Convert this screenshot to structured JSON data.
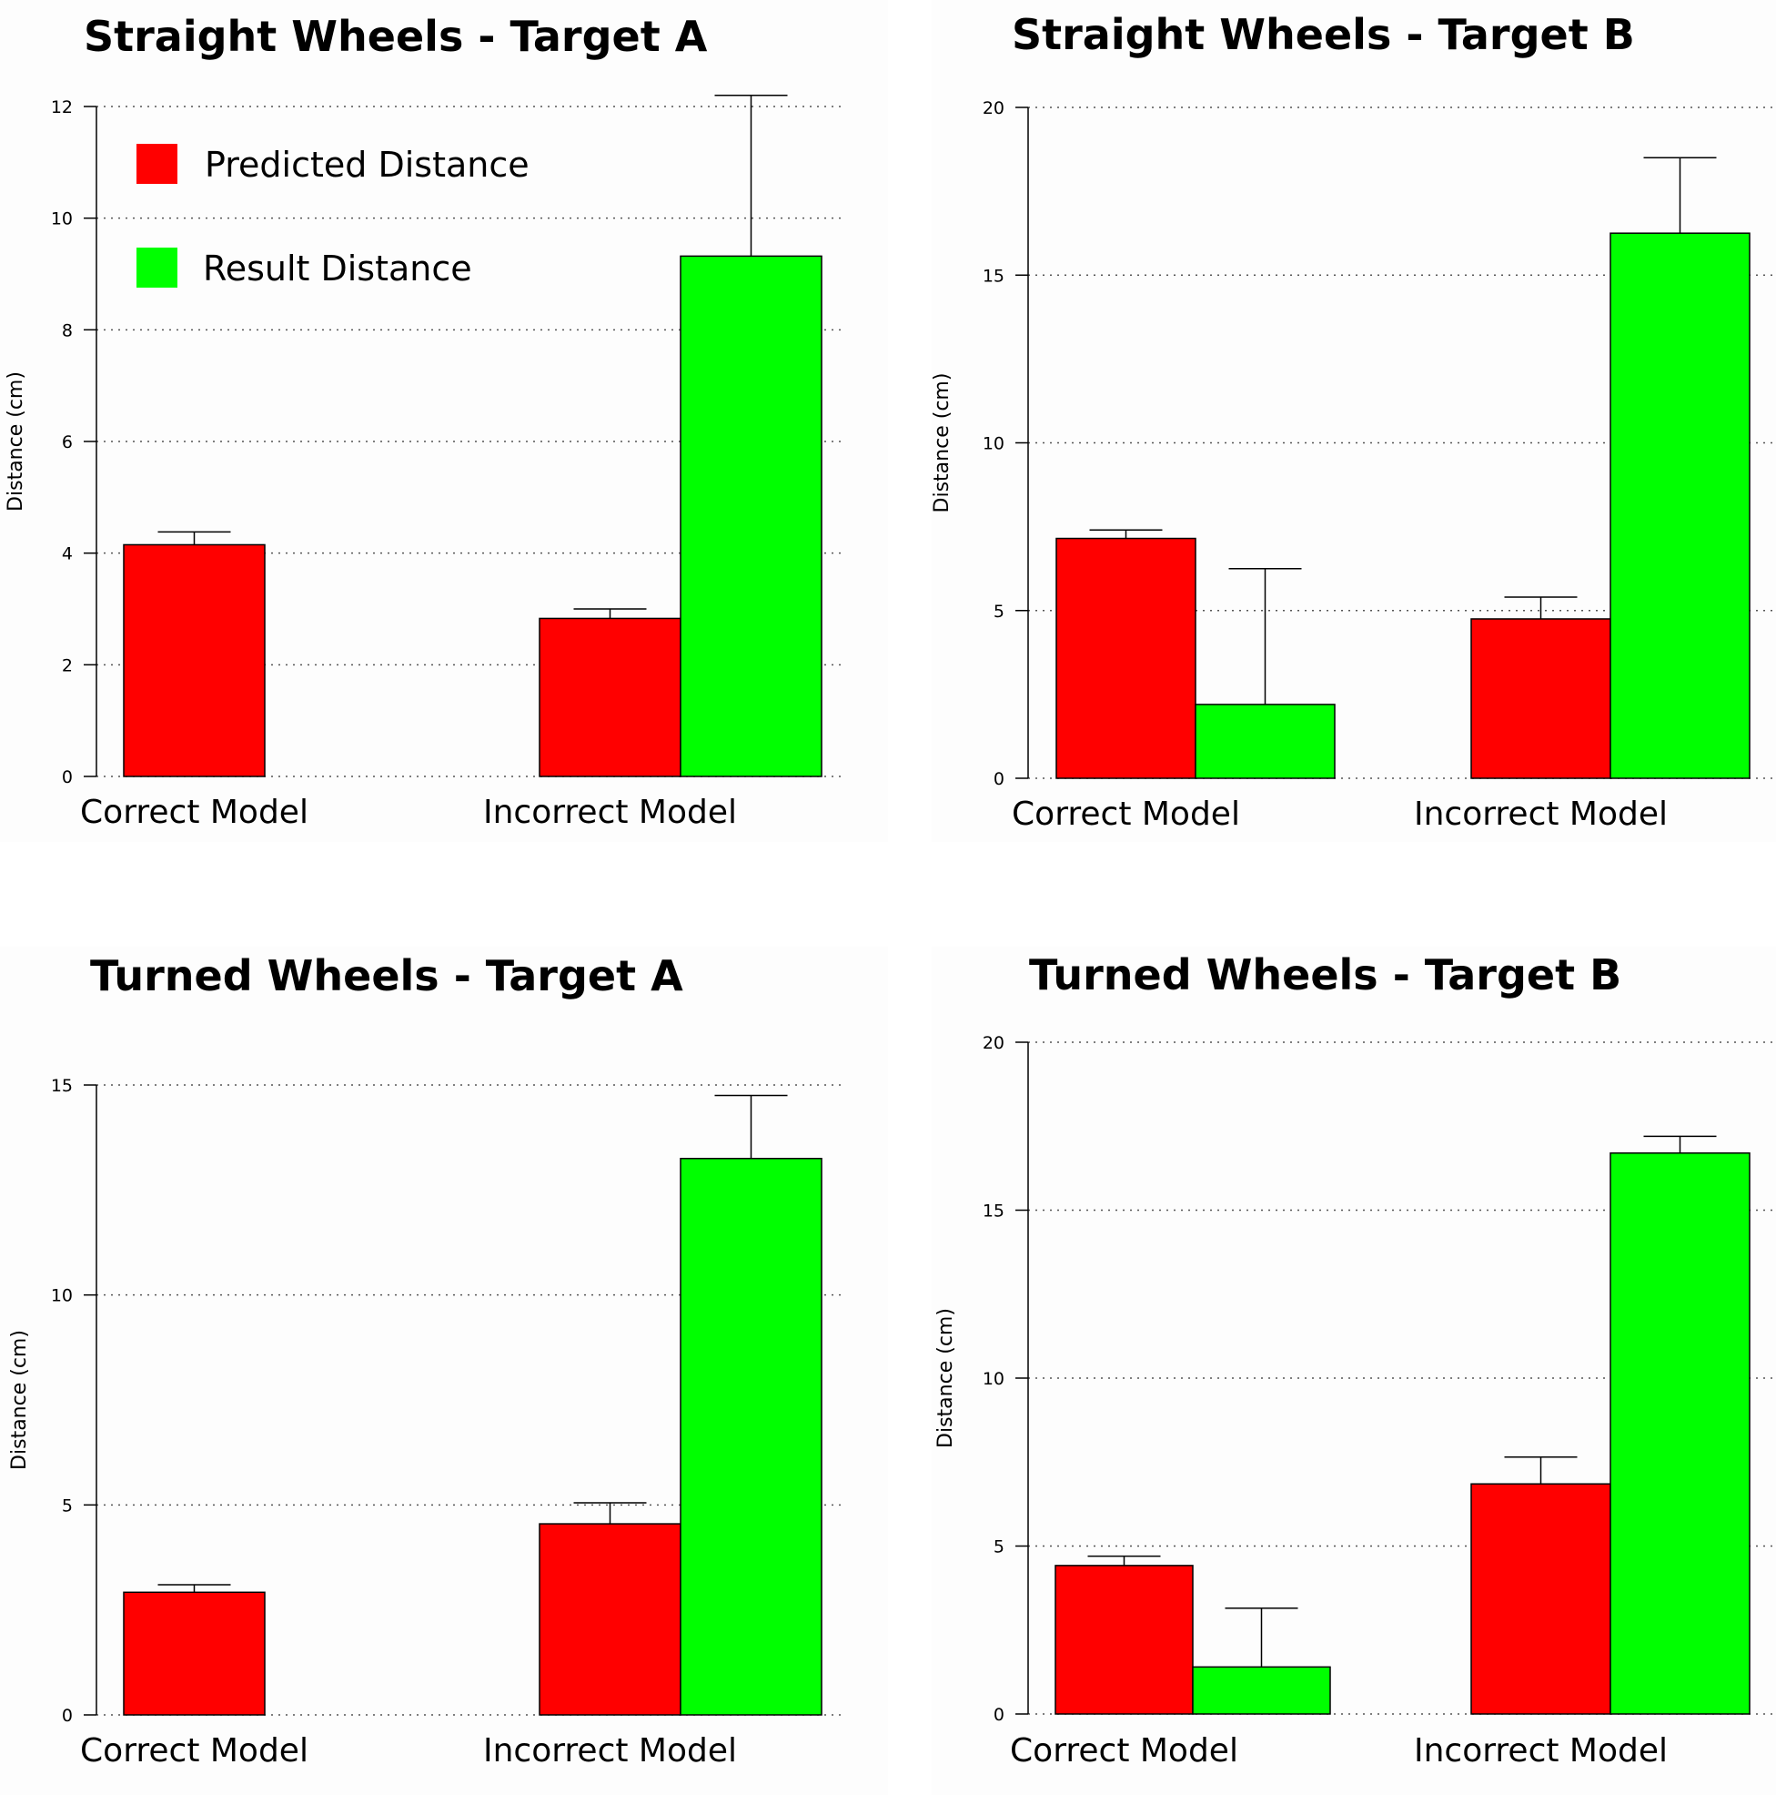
{
  "legend": {
    "placement": "top-left",
    "entries": [
      {
        "label": "Predicted Distance",
        "color": "#ff0000"
      },
      {
        "label": "Result Distance",
        "color": "#00ff00"
      }
    ]
  },
  "colors": {
    "predicted": "#ff0000",
    "result": "#00ff00",
    "axis": "#000000",
    "grid": "#555555"
  },
  "chart_data": [
    {
      "type": "bar",
      "title": "Straight Wheels - Target A",
      "ylabel": "Distance (cm)",
      "xlabel": "",
      "categories": [
        "Correct Model",
        "Incorrect Model"
      ],
      "series": [
        {
          "name": "Predicted Distance",
          "values": [
            4.15,
            2.83
          ],
          "error_upper": [
            4.38,
            3.0
          ]
        },
        {
          "name": "Result Distance",
          "values": [
            0,
            9.32
          ],
          "error_upper": [
            0,
            12.2
          ]
        }
      ],
      "ylim": [
        0,
        12
      ],
      "yticks": [
        0,
        2,
        4,
        6,
        8,
        10,
        12
      ],
      "grid": "horizontal dotted",
      "legend": true
    },
    {
      "type": "bar",
      "title": "Straight Wheels - Target B",
      "ylabel": "Distance (cm)",
      "xlabel": "",
      "categories": [
        "Correct Model",
        "Incorrect Model"
      ],
      "series": [
        {
          "name": "Predicted Distance",
          "values": [
            7.15,
            4.75
          ],
          "error_upper": [
            7.4,
            5.4
          ]
        },
        {
          "name": "Result Distance",
          "values": [
            2.2,
            16.25
          ],
          "error_upper": [
            6.25,
            18.5
          ]
        }
      ],
      "ylim": [
        0,
        20
      ],
      "yticks": [
        0,
        5,
        10,
        15,
        20
      ],
      "grid": "horizontal dotted",
      "legend": false
    },
    {
      "type": "bar",
      "title": "Turned Wheels - Target A",
      "ylabel": "Distance (cm)",
      "xlabel": "",
      "categories": [
        "Correct Model",
        "Incorrect Model"
      ],
      "series": [
        {
          "name": "Predicted Distance",
          "values": [
            2.92,
            4.55
          ],
          "error_upper": [
            3.1,
            5.05
          ]
        },
        {
          "name": "Result Distance",
          "values": [
            0,
            13.25
          ],
          "error_upper": [
            0,
            14.75
          ]
        }
      ],
      "ylim": [
        0,
        15
      ],
      "yticks": [
        0,
        5,
        10,
        15
      ],
      "grid": "horizontal dotted",
      "legend": false
    },
    {
      "type": "bar",
      "title": "Turned Wheels - Target B",
      "ylabel": "Distance (cm)",
      "xlabel": "",
      "categories": [
        "Correct Model",
        "Incorrect Model"
      ],
      "series": [
        {
          "name": "Predicted Distance",
          "values": [
            4.42,
            6.85
          ],
          "error_upper": [
            4.7,
            7.65
          ]
        },
        {
          "name": "Result Distance",
          "values": [
            1.4,
            16.7
          ],
          "error_upper": [
            3.15,
            17.2
          ]
        }
      ],
      "ylim": [
        0,
        20
      ],
      "yticks": [
        0,
        5,
        10,
        15,
        20
      ],
      "grid": "horizontal dotted",
      "legend": false
    }
  ]
}
